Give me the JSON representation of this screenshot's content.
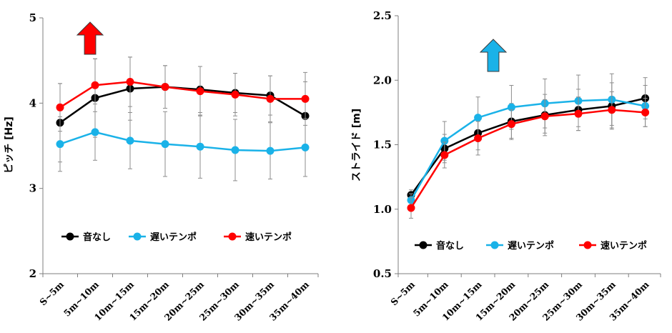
{
  "chart_data": [
    {
      "type": "line",
      "ylabel": "ピッチ [Hz]",
      "xlabel": "",
      "ylim": [
        2,
        5
      ],
      "yticks": [
        "2",
        "3",
        "4",
        "5"
      ],
      "categories": [
        "S~5m",
        "5m~10m",
        "10m~15m",
        "15m~20m",
        "20m~25m",
        "25m~30m",
        "30m~35m",
        "35m~40m"
      ],
      "grid": false,
      "legend_position": "lower-center",
      "annotation": {
        "type": "arrow",
        "direction": "up",
        "color": "#ff0000"
      },
      "series": [
        {
          "name": "音なし",
          "color": "#000000",
          "values": [
            3.77,
            4.06,
            4.17,
            4.19,
            4.16,
            4.12,
            4.09,
            3.85
          ],
          "errors": [
            0.46,
            0.46,
            0.37,
            0.25,
            0.27,
            0.23,
            0.23,
            0.4
          ]
        },
        {
          "name": "遅いテンポ",
          "color": "#1ab2e8",
          "values": [
            3.52,
            3.66,
            3.56,
            3.52,
            3.49,
            3.45,
            3.44,
            3.48
          ],
          "errors": [
            0.32,
            0.33,
            0.33,
            0.38,
            0.37,
            0.36,
            0.33,
            0.34
          ]
        },
        {
          "name": "速いテンポ",
          "color": "#ff0000",
          "values": [
            3.95,
            4.21,
            4.25,
            4.19,
            4.14,
            4.1,
            4.05,
            4.05
          ],
          "errors": [
            0.28,
            0.31,
            0.29,
            0.25,
            0.29,
            0.25,
            0.27,
            0.31
          ]
        }
      ]
    },
    {
      "type": "line",
      "ylabel": "ストライド [m]",
      "xlabel": "",
      "ylim": [
        0.5,
        2.5
      ],
      "yticks": [
        "0.5",
        "1.0",
        "1.5",
        "2.0",
        "2.5"
      ],
      "categories": [
        "S~5m",
        "5m~10m",
        "10m~15m",
        "15m~20m",
        "20m~25m",
        "25m~30m",
        "30m~35m",
        "35m~40m"
      ],
      "grid": false,
      "legend_position": "lower-center",
      "annotation": {
        "type": "arrow",
        "direction": "up",
        "color": "#1ab2e8"
      },
      "series": [
        {
          "name": "音なし",
          "color": "#000000",
          "values": [
            1.11,
            1.47,
            1.59,
            1.68,
            1.73,
            1.77,
            1.8,
            1.86
          ],
          "errors": [
            0.04,
            0.11,
            0.13,
            0.14,
            0.16,
            0.16,
            0.18,
            0.16
          ]
        },
        {
          "name": "遅いテンポ",
          "color": "#1ab2e8",
          "values": [
            1.07,
            1.53,
            1.71,
            1.79,
            1.82,
            1.84,
            1.85,
            1.8
          ],
          "errors": [
            0.05,
            0.15,
            0.16,
            0.17,
            0.19,
            0.2,
            0.2,
            0.16
          ]
        },
        {
          "name": "速いテンポ",
          "color": "#ff0000",
          "values": [
            1.01,
            1.42,
            1.55,
            1.66,
            1.72,
            1.74,
            1.77,
            1.75
          ],
          "errors": [
            0.08,
            0.1,
            0.13,
            0.11,
            0.13,
            0.13,
            0.14,
            0.11
          ]
        }
      ]
    }
  ]
}
